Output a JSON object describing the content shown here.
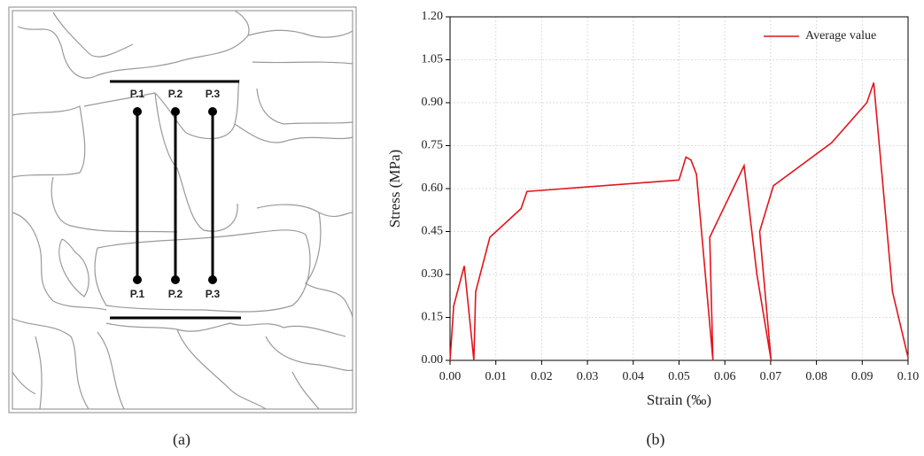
{
  "panel_a": {
    "labels_top": [
      "P.1",
      "P.2",
      "P.3"
    ],
    "labels_bottom": [
      "P.1",
      "P.2",
      "P.3"
    ],
    "caption": "(a)"
  },
  "chart_data": {
    "type": "line",
    "caption": "(b)",
    "x_label": "Strain (‰)",
    "y_label": "Stress (MPa)",
    "x": [
      0,
      0.0008,
      0.0031,
      0.0052,
      0.0056,
      0.0087,
      0.0155,
      0.0168,
      0.05,
      0.0515,
      0.0526,
      0.0538,
      0.0574,
      0.0567,
      0.0642,
      0.067,
      0.0701,
      0.0676,
      0.0706,
      0.0833,
      0.091,
      0.0925,
      0.0966,
      0.1
    ],
    "series": [
      {
        "name": "Average value",
        "color": "#e3141c",
        "values": [
          0,
          0.19,
          0.33,
          0,
          0.24,
          0.43,
          0.53,
          0.59,
          0.63,
          0.71,
          0.7,
          0.65,
          0,
          0.43,
          0.68,
          0.3,
          0,
          0.45,
          0.61,
          0.76,
          0.9,
          0.97,
          0.24,
          0.01
        ]
      }
    ],
    "xlim": [
      0,
      0.1
    ],
    "ylim": [
      0,
      1.2
    ],
    "xticks": [
      {
        "value": 0,
        "label": "0.00"
      },
      0.01,
      0.02,
      0.03,
      0.04,
      0.05,
      0.06,
      0.07,
      0.08,
      0.09,
      {
        "value": 0.1,
        "label": "0.10"
      }
    ],
    "yticks": [
      {
        "value": 0,
        "label": "0.00"
      },
      0.15,
      {
        "value": 0.3,
        "label": "0.30"
      },
      0.45,
      {
        "value": 0.6,
        "label": "0.60"
      },
      0.75,
      {
        "value": 0.9,
        "label": "0.90"
      },
      1.05,
      {
        "value": 1.2,
        "label": "1.20"
      }
    ],
    "grid": true,
    "legend": "upper right"
  }
}
